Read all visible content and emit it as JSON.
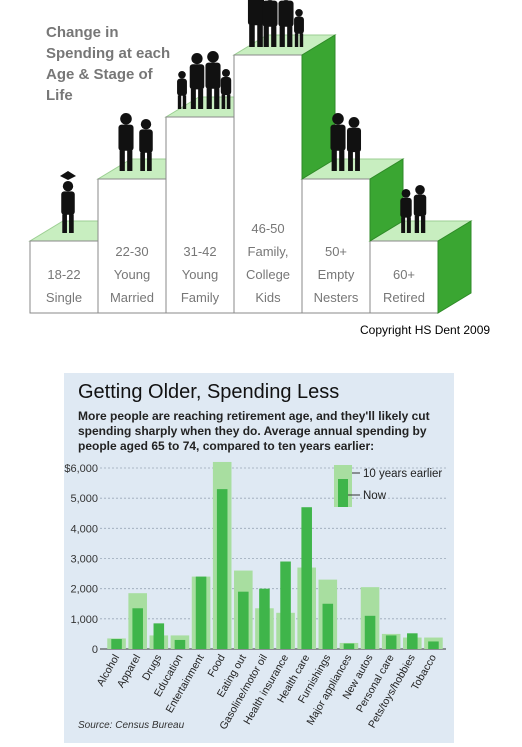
{
  "copyright": "Copyright HS Dent 2009",
  "colors": {
    "step_top": "#c8eec0",
    "step_front": "#ffffff",
    "step_side": "#3aa632",
    "bar_earlier": "#a8dea0",
    "bar_now": "#3fb54a",
    "panel_bg": "#dfe9f3"
  },
  "chart_data": [
    {
      "type": "bar",
      "title": "Change in Spending at each Age & Stage of Life",
      "title_lines": [
        "Change in",
        "Spending at each",
        "Age & Stage of",
        "Life"
      ],
      "categories": [
        {
          "lines": [
            "18-22",
            "Single"
          ]
        },
        {
          "lines": [
            "22-30",
            "Young",
            "Married"
          ]
        },
        {
          "lines": [
            "31-42",
            "Young",
            "Family"
          ]
        },
        {
          "lines": [
            "46-50",
            "Family,",
            "College",
            "Kids"
          ]
        },
        {
          "lines": [
            "50+",
            "Empty",
            "Nesters"
          ]
        },
        {
          "lines": [
            "60+",
            "Retired"
          ]
        }
      ],
      "values": [
        1,
        2,
        3,
        4,
        2,
        1
      ]
    },
    {
      "type": "bar",
      "title": "Getting Older, Spending Less",
      "subtitle": "More people are reaching retirement age, and they'll likely cut spending sharply when they do. Average annual spending by people aged 65 to 74, compared to ten years earlier:",
      "source": "Source: Census Bureau",
      "yticks": [
        "$6,000",
        "5,000",
        "4,000",
        "3,000",
        "2,000",
        "1,000",
        "0"
      ],
      "ylim": [
        0,
        6000
      ],
      "legend": [
        "10 years earlier",
        "Now"
      ],
      "categories": [
        "Alcohol",
        "Apparel",
        "Drugs",
        "Education",
        "Entertainment",
        "Food",
        "Eating out",
        "Gasoline/motor oil",
        "Health insurance",
        "Health care",
        "Furnishings",
        "Major appliances",
        "New autos",
        "Personal care",
        "Pets/toys/hobbies",
        "Tobacco"
      ],
      "series": [
        {
          "name": "10 years earlier",
          "values": [
            350,
            1850,
            450,
            450,
            2400,
            6200,
            2600,
            1350,
            1200,
            2700,
            2300,
            200,
            2050,
            500,
            380,
            380
          ]
        },
        {
          "name": "Now",
          "values": [
            330,
            1350,
            850,
            300,
            2400,
            5300,
            1900,
            2000,
            2900,
            4700,
            1500,
            180,
            1100,
            450,
            520,
            250
          ]
        }
      ]
    }
  ]
}
